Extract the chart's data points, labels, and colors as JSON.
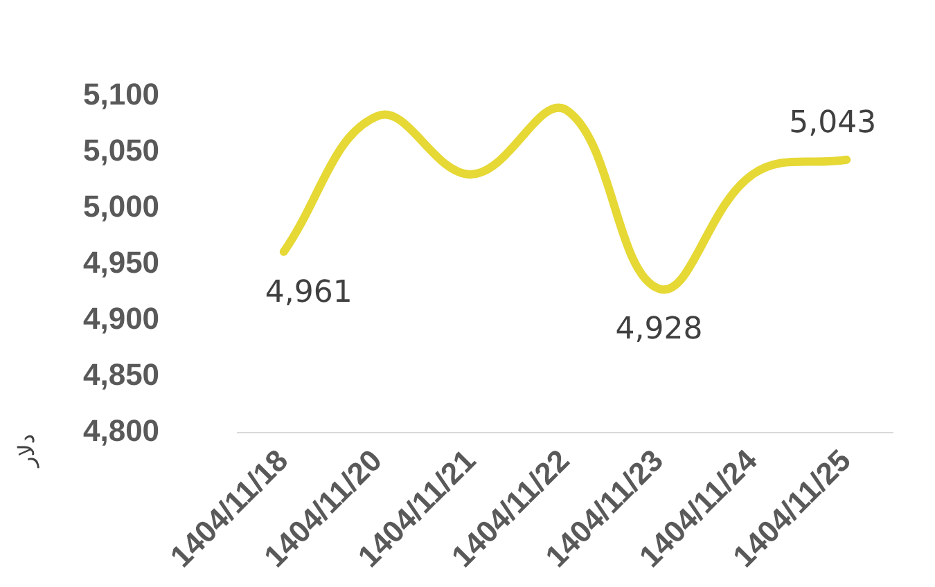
{
  "chart_data": {
    "type": "line",
    "ylabel": "دلار",
    "categories": [
      "1404/11/18",
      "1404/11/20",
      "1404/11/21",
      "1404/11/22",
      "1404/11/23",
      "1404/11/24",
      "1404/11/25"
    ],
    "series": [
      {
        "color": "#e6d835",
        "values": [
          4961,
          5082,
          5030,
          5088,
          4928,
          5030,
          5043
        ],
        "value_labels": [
          "4,961",
          null,
          null,
          null,
          "4,928",
          null,
          "5,043"
        ]
      }
    ],
    "ylim": [
      4800,
      5100
    ],
    "yticks": [
      {
        "value": 4800,
        "label": "4,800"
      },
      {
        "value": 4850,
        "label": "4,850"
      },
      {
        "value": 4900,
        "label": "4,900"
      },
      {
        "value": 4950,
        "label": "4,950"
      },
      {
        "value": 5000,
        "label": "5,000"
      },
      {
        "value": 5050,
        "label": "5,050"
      },
      {
        "value": 5100,
        "label": "5,100"
      }
    ],
    "grid": false,
    "legend": false,
    "marker": "none",
    "line_style": "solid"
  }
}
